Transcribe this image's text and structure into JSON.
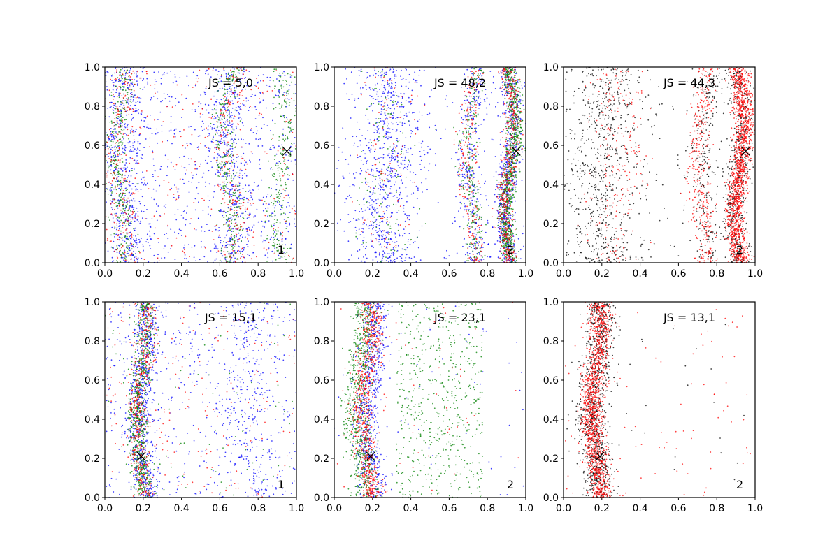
{
  "figure": {
    "rows": 2,
    "cols": 3,
    "tick_labels": [
      "0.0",
      "0.2",
      "0.4",
      "0.6",
      "0.8",
      "1.0"
    ]
  },
  "chart_data": [
    {
      "type": "scatter",
      "annotation": "JS = 5,0",
      "corner_label": "1",
      "xlim": [
        0,
        1
      ],
      "ylim": [
        0,
        1
      ],
      "xticks": [
        0.0,
        0.2,
        0.4,
        0.6,
        0.8,
        1.0
      ],
      "yticks": [
        0.0,
        0.2,
        0.4,
        0.6,
        0.8,
        1.0
      ],
      "marker": {
        "x": 0.95,
        "y": 0.57,
        "symbol": "x",
        "color": "#000000"
      },
      "series": [
        {
          "color": "#0000ff",
          "bands": [
            {
              "x": 0.1,
              "w": 0.05,
              "n": 450
            },
            {
              "x": 0.65,
              "w": 0.05,
              "n": 400
            },
            {
              "x": 0.5,
              "w": 1.0,
              "n": 800,
              "uniform": true
            }
          ]
        },
        {
          "color": "#008000",
          "bands": [
            {
              "x": 0.08,
              "w": 0.03,
              "n": 350
            },
            {
              "x": 0.64,
              "w": 0.03,
              "n": 300
            },
            {
              "x": 0.92,
              "w": 0.03,
              "n": 250
            }
          ]
        },
        {
          "color": "#ff0000",
          "bands": [
            {
              "x": 0.09,
              "w": 0.04,
              "n": 200
            },
            {
              "x": 0.66,
              "w": 0.04,
              "n": 180
            },
            {
              "x": 0.5,
              "w": 1.0,
              "n": 250,
              "uniform": true
            }
          ]
        }
      ]
    },
    {
      "type": "scatter",
      "annotation": "JS = 48,2",
      "corner_label": "2",
      "xlim": [
        0,
        1
      ],
      "ylim": [
        0,
        1
      ],
      "xticks": [
        0.0,
        0.2,
        0.4,
        0.6,
        0.8,
        1.0
      ],
      "yticks": [
        0.0,
        0.2,
        0.4,
        0.6,
        0.8,
        1.0
      ],
      "marker": {
        "x": 0.95,
        "y": 0.57,
        "symbol": "x",
        "color": "#000000"
      },
      "series": [
        {
          "color": "#0000ff",
          "bands": [
            {
              "x": 0.91,
              "w": 0.025,
              "n": 700
            },
            {
              "x": 0.27,
              "w": 0.09,
              "n": 700
            },
            {
              "x": 0.72,
              "w": 0.03,
              "n": 300
            },
            {
              "x": 0.5,
              "w": 1.0,
              "n": 250,
              "uniform": true
            }
          ]
        },
        {
          "color": "#008000",
          "bands": [
            {
              "x": 0.92,
              "w": 0.02,
              "n": 900
            },
            {
              "x": 0.72,
              "w": 0.025,
              "n": 250
            },
            {
              "x": 0.28,
              "w": 0.08,
              "n": 120
            }
          ]
        },
        {
          "color": "#ff0000",
          "bands": [
            {
              "x": 0.91,
              "w": 0.022,
              "n": 500
            },
            {
              "x": 0.71,
              "w": 0.025,
              "n": 200
            },
            {
              "x": 0.27,
              "w": 0.08,
              "n": 100
            }
          ]
        }
      ]
    },
    {
      "type": "scatter",
      "annotation": "JS = 44,3",
      "corner_label": "2",
      "xlim": [
        0,
        1
      ],
      "ylim": [
        0,
        1
      ],
      "xticks": [
        0.0,
        0.2,
        0.4,
        0.6,
        0.8,
        1.0
      ],
      "yticks": [
        0.0,
        0.2,
        0.4,
        0.6,
        0.8,
        1.0
      ],
      "marker": {
        "x": 0.95,
        "y": 0.57,
        "symbol": "x",
        "color": "#000000"
      },
      "series": [
        {
          "color": "#000000",
          "bands": [
            {
              "x": 0.91,
              "w": 0.03,
              "n": 500
            },
            {
              "x": 0.74,
              "w": 0.04,
              "n": 250
            },
            {
              "x": 0.2,
              "w": 0.1,
              "n": 700
            },
            {
              "x": 0.5,
              "w": 1.0,
              "n": 150,
              "uniform": true
            }
          ]
        },
        {
          "color": "#ff0000",
          "bands": [
            {
              "x": 0.92,
              "w": 0.025,
              "n": 1400
            },
            {
              "x": 0.72,
              "w": 0.03,
              "n": 350
            },
            {
              "x": 0.27,
              "w": 0.08,
              "n": 200
            }
          ]
        }
      ]
    },
    {
      "type": "scatter",
      "annotation": "JS = 15,1",
      "corner_label": "1",
      "xlim": [
        0,
        1
      ],
      "ylim": [
        0,
        1
      ],
      "xticks": [
        0.0,
        0.2,
        0.4,
        0.6,
        0.8,
        1.0
      ],
      "yticks": [
        0.0,
        0.2,
        0.4,
        0.6,
        0.8,
        1.0
      ],
      "marker": {
        "x": 0.19,
        "y": 0.21,
        "symbol": "x",
        "color": "#000000"
      },
      "series": [
        {
          "color": "#0000ff",
          "bands": [
            {
              "x": 0.2,
              "w": 0.03,
              "n": 700
            },
            {
              "x": 0.75,
              "w": 0.06,
              "n": 250
            },
            {
              "x": 0.5,
              "w": 1.0,
              "n": 500,
              "uniform": true
            }
          ]
        },
        {
          "color": "#008000",
          "bands": [
            {
              "x": 0.19,
              "w": 0.025,
              "n": 700
            },
            {
              "x": 0.5,
              "w": 1.0,
              "n": 80,
              "uniform": true
            }
          ]
        },
        {
          "color": "#ff0000",
          "bands": [
            {
              "x": 0.19,
              "w": 0.025,
              "n": 400
            },
            {
              "x": 0.5,
              "w": 1.0,
              "n": 200,
              "uniform": true
            }
          ]
        }
      ]
    },
    {
      "type": "scatter",
      "annotation": "JS = 23,1",
      "corner_label": "2",
      "xlim": [
        0,
        1
      ],
      "ylim": [
        0,
        1
      ],
      "xticks": [
        0.0,
        0.2,
        0.4,
        0.6,
        0.8,
        1.0
      ],
      "yticks": [
        0.0,
        0.2,
        0.4,
        0.6,
        0.8,
        1.0
      ],
      "marker": {
        "x": 0.19,
        "y": 0.21,
        "symbol": "x",
        "color": "#000000"
      },
      "series": [
        {
          "color": "#0000ff",
          "bands": [
            {
              "x": 0.19,
              "w": 0.035,
              "n": 700
            },
            {
              "x": 0.5,
              "w": 1.0,
              "n": 60,
              "uniform": true
            }
          ]
        },
        {
          "color": "#008000",
          "bands": [
            {
              "x": 0.14,
              "w": 0.035,
              "n": 700
            },
            {
              "x": 0.55,
              "w": 0.45,
              "n": 550,
              "uniform": true
            }
          ]
        },
        {
          "color": "#ff0000",
          "bands": [
            {
              "x": 0.17,
              "w": 0.03,
              "n": 700
            },
            {
              "x": 0.5,
              "w": 1.0,
              "n": 50,
              "uniform": true
            }
          ]
        }
      ]
    },
    {
      "type": "scatter",
      "annotation": "JS = 13,1",
      "corner_label": "2",
      "xlim": [
        0,
        1
      ],
      "ylim": [
        0,
        1
      ],
      "xticks": [
        0.0,
        0.2,
        0.4,
        0.6,
        0.8,
        1.0
      ],
      "yticks": [
        0.0,
        0.2,
        0.4,
        0.6,
        0.8,
        1.0
      ],
      "marker": {
        "x": 0.19,
        "y": 0.21,
        "symbol": "x",
        "color": "#000000"
      },
      "series": [
        {
          "color": "#000000",
          "bands": [
            {
              "x": 0.17,
              "w": 0.04,
              "n": 1000
            },
            {
              "x": 0.5,
              "w": 1.0,
              "n": 30,
              "uniform": true
            }
          ]
        },
        {
          "color": "#ff0000",
          "bands": [
            {
              "x": 0.17,
              "w": 0.03,
              "n": 1300
            },
            {
              "x": 0.5,
              "w": 1.0,
              "n": 90,
              "uniform": true
            }
          ]
        }
      ]
    }
  ]
}
